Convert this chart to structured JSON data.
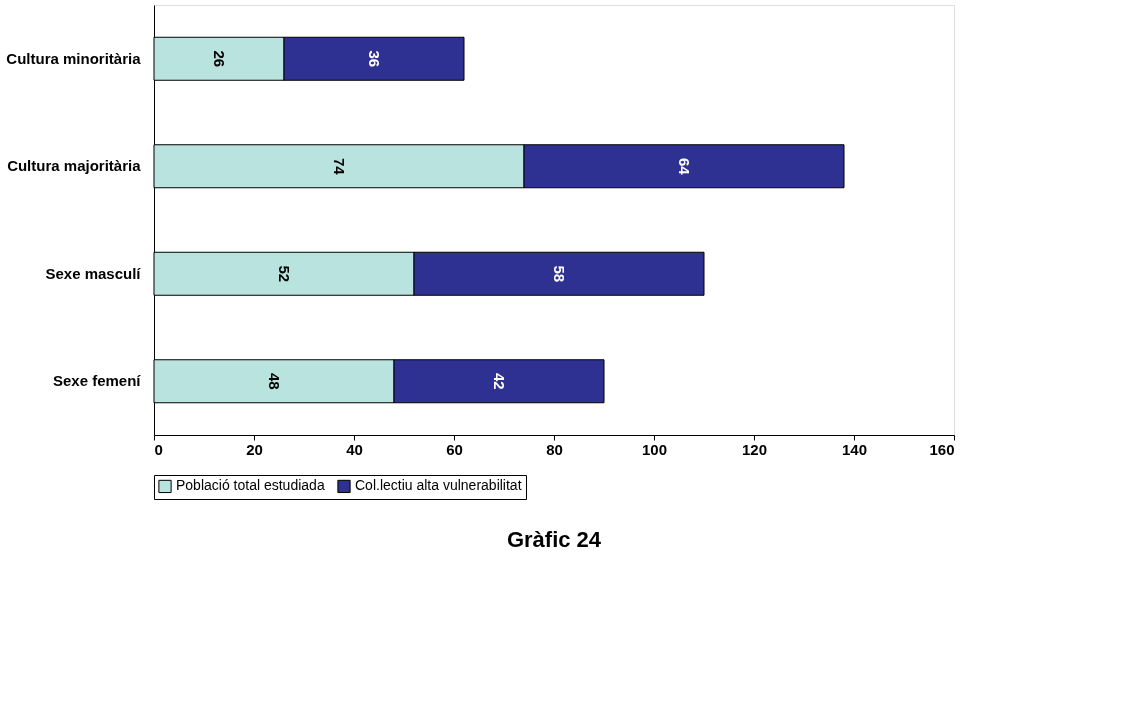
{
  "chart_data": {
    "type": "bar",
    "orientation": "horizontal",
    "stacked": true,
    "title": "Gràfic 24",
    "categories": [
      "Cultura minoritària",
      "Cultura majoritària",
      "Sexe masculí",
      "Sexe femení"
    ],
    "series": [
      {
        "name": "Població total estudiada",
        "color": "#b9e3df",
        "values": [
          26,
          74,
          52,
          48
        ]
      },
      {
        "name": "Col.lectiu alta vulnerabilitat",
        "color": "#2e3192",
        "values": [
          36,
          64,
          58,
          42
        ]
      }
    ],
    "xlim": [
      0,
      160
    ],
    "xticks": [
      0,
      20,
      40,
      60,
      80,
      100,
      120,
      140,
      160
    ],
    "grid": false,
    "legend": "bottom",
    "data_labels": true
  }
}
